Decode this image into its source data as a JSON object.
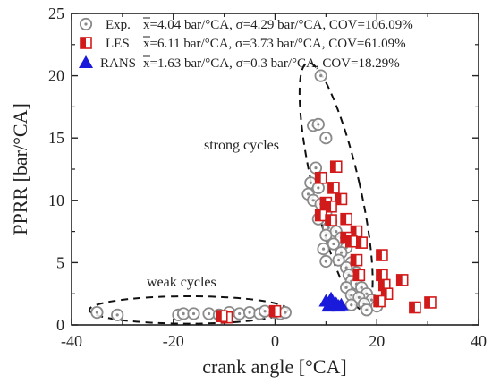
{
  "chart_data": {
    "type": "scatter",
    "xlabel": "crank angle [°CA]",
    "ylabel": "PPRR [bar/°CA]",
    "xlim": [
      -40,
      40
    ],
    "ylim": [
      0,
      25
    ],
    "xticks": [
      -40,
      -20,
      0,
      20,
      40
    ],
    "yticks": [
      0,
      5,
      10,
      15,
      20,
      25
    ],
    "grid": false,
    "legend_position": "top-right",
    "series": [
      {
        "name": "Exp.",
        "legend_stats": "x=4.04 bar/°CA, σ=4.29 bar/°CA, COV=106.09%",
        "marker": "circle-dot",
        "color": "#8a8a8a",
        "points": [
          [
            -35,
            1.0
          ],
          [
            -31,
            0.8
          ],
          [
            -19,
            0.8
          ],
          [
            -18,
            0.9
          ],
          [
            -16,
            0.9
          ],
          [
            -13,
            0.9
          ],
          [
            -11,
            0.8
          ],
          [
            -9,
            1.0
          ],
          [
            -7,
            0.9
          ],
          [
            -5,
            1.0
          ],
          [
            -3,
            0.9
          ],
          [
            -2,
            1.1
          ],
          [
            0,
            1.0
          ],
          [
            1,
            0.9
          ],
          [
            2,
            1.0
          ],
          [
            9,
            20.0
          ],
          [
            7.5,
            16.0
          ],
          [
            8.5,
            16.1
          ],
          [
            10,
            15.0
          ],
          [
            8,
            12.6
          ],
          [
            7,
            11.4
          ],
          [
            8.5,
            11.0
          ],
          [
            6.5,
            10.5
          ],
          [
            7.5,
            10.0
          ],
          [
            9,
            9.7
          ],
          [
            10,
            9.0
          ],
          [
            8.5,
            8.5
          ],
          [
            11,
            8.3
          ],
          [
            10.5,
            7.8
          ],
          [
            12,
            7.5
          ],
          [
            10,
            7.2
          ],
          [
            13,
            7.0
          ],
          [
            11.5,
            6.5
          ],
          [
            14,
            6.2
          ],
          [
            9.5,
            6.1
          ],
          [
            13,
            5.8
          ],
          [
            12.5,
            5.2
          ],
          [
            10,
            5.1
          ],
          [
            15,
            5.0
          ],
          [
            14,
            4.6
          ],
          [
            16,
            4.2
          ],
          [
            14.5,
            4.0
          ],
          [
            15,
            3.5
          ],
          [
            16,
            3.3
          ],
          [
            17,
            3.0
          ],
          [
            14,
            3.0
          ],
          [
            18,
            2.5
          ],
          [
            15,
            2.4
          ],
          [
            16.5,
            2.2
          ],
          [
            19,
            2.0
          ],
          [
            17.5,
            1.7
          ],
          [
            15,
            1.6
          ],
          [
            20,
            1.5
          ],
          [
            18,
            1.2
          ]
        ]
      },
      {
        "name": "LES",
        "legend_stats": "x=6.11 bar/°CA, σ=3.73 bar/°CA, COV=61.09%",
        "marker": "half-filled-square",
        "color": "#d11a1a",
        "points": [
          [
            -9.5,
            0.6
          ],
          [
            -10.5,
            0.7
          ],
          [
            0,
            1.1
          ],
          [
            12,
            12.7
          ],
          [
            9,
            11.8
          ],
          [
            11.5,
            11.0
          ],
          [
            13,
            10.1
          ],
          [
            10,
            9.8
          ],
          [
            11,
            9.5
          ],
          [
            9,
            8.8
          ],
          [
            14,
            8.5
          ],
          [
            11,
            8.4
          ],
          [
            16,
            7.5
          ],
          [
            14,
            7.0
          ],
          [
            17,
            6.6
          ],
          [
            15,
            6.7
          ],
          [
            21,
            5.6
          ],
          [
            16,
            5.2
          ],
          [
            16.5,
            4.0
          ],
          [
            21,
            4.0
          ],
          [
            21.5,
            3.2
          ],
          [
            25,
            3.6
          ],
          [
            22,
            2.5
          ],
          [
            20.5,
            1.9
          ],
          [
            27.5,
            1.4
          ],
          [
            30.5,
            1.8
          ]
        ]
      },
      {
        "name": "RANS",
        "legend_stats": "x=1.63 bar/°CA, σ=0.3 bar/°CA, COV=18.29%",
        "marker": "triangle",
        "color": "#1a1adb",
        "points": [
          [
            10,
            1.9
          ],
          [
            11,
            2.1
          ],
          [
            12,
            1.7
          ],
          [
            10.5,
            1.5
          ],
          [
            12.5,
            1.5
          ],
          [
            11.5,
            1.6
          ],
          [
            13,
            1.6
          ]
        ]
      }
    ],
    "annotations": [
      {
        "text": "strong cycles",
        "x": -1,
        "y": 14.2
      },
      {
        "text": "weak cycles",
        "x": -24,
        "y": 3.0
      }
    ],
    "ellipses": [
      {
        "name": "strong-cycles-ellipse",
        "center": [
          12,
          11.1
        ],
        "rx_data": 4.6,
        "ry_data": 10.2,
        "rotation_deg": 13
      },
      {
        "name": "weak-cycles-ellipse",
        "center": [
          -17,
          1.2
        ],
        "rx_data": 19.5,
        "ry_data": 1.1,
        "rotation_deg": 0
      }
    ]
  }
}
